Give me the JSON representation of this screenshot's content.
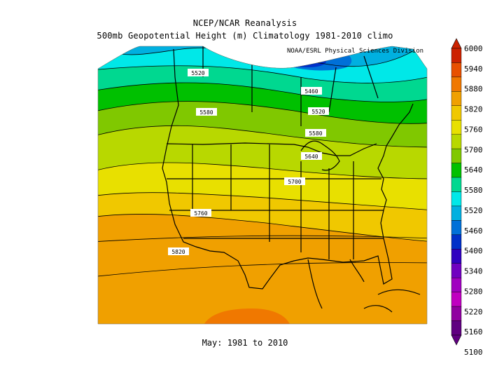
{
  "header": {
    "title_line1": "NCEP/NCAR Reanalysis",
    "title_line2": "500mb Geopotential Height (m) Climatology 1981-2010 climo",
    "org": "NOAA/ESRL Physical Sciences Division"
  },
  "footer": {
    "period": "May: 1981 to 2010"
  },
  "colorbar": {
    "levels": [
      "6000",
      "5940",
      "5880",
      "5820",
      "5760",
      "5700",
      "5640",
      "5580",
      "5520",
      "5460",
      "5400",
      "5340",
      "5280",
      "5220",
      "5160",
      "5100"
    ],
    "colors": [
      "#cc2200",
      "#e85000",
      "#f07800",
      "#f0a000",
      "#f0c800",
      "#e8e000",
      "#b8d800",
      "#80c800",
      "#00c000",
      "#00d890",
      "#00e8e8",
      "#00b0e0",
      "#0070d8",
      "#0030c8",
      "#3000c0",
      "#7000c0",
      "#a000c0",
      "#c000c0",
      "#9000a0",
      "#600080"
    ]
  },
  "contour_labels": [
    "5520",
    "5460",
    "5580",
    "5520",
    "5580",
    "5640",
    "5700",
    "5760",
    "5820"
  ]
}
